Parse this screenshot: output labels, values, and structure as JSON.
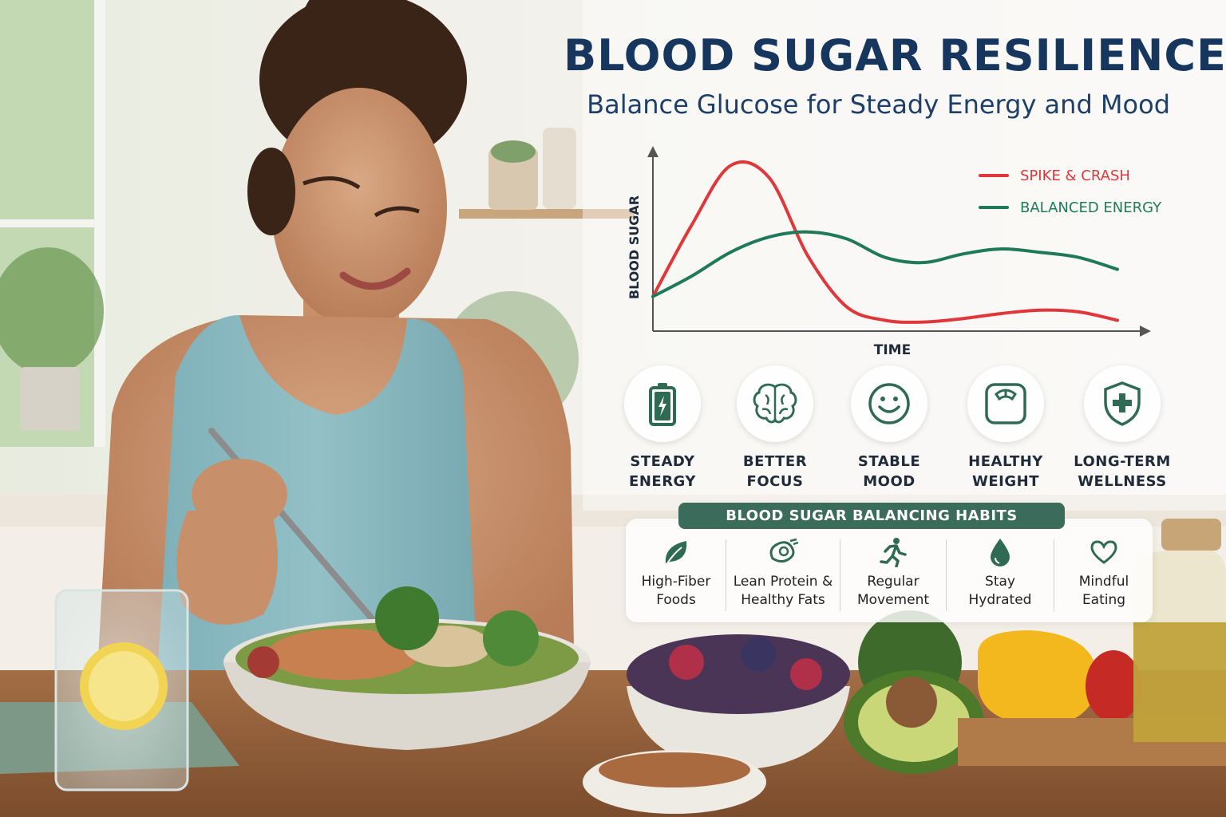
{
  "header": {
    "title": "BLOOD SUGAR RESILIENCE",
    "subtitle": "Balance Glucose for Steady Energy and Mood"
  },
  "chart_data": {
    "type": "line",
    "xlabel": "TIME",
    "ylabel": "BLOOD SUGAR",
    "x": [
      0,
      1,
      2,
      3,
      4,
      5,
      6,
      7,
      8,
      9,
      10,
      11,
      12
    ],
    "ylim": [
      0,
      100
    ],
    "series": [
      {
        "name": "SPIKE & CRASH",
        "color": "#e0383a",
        "values": [
          18,
          60,
          95,
          88,
          42,
          12,
          4,
          3,
          5,
          8,
          10,
          9,
          4
        ]
      },
      {
        "name": "BALANCED ENERGY",
        "color": "#1f7a5c",
        "values": [
          18,
          30,
          44,
          53,
          56,
          52,
          41,
          38,
          43,
          46,
          44,
          41,
          34
        ]
      }
    ],
    "grid": false,
    "legend_position": "top-right"
  },
  "benefits": [
    {
      "label_line1": "STEADY",
      "label_line2": "ENERGY",
      "icon": "battery-icon"
    },
    {
      "label_line1": "BETTER",
      "label_line2": "FOCUS",
      "icon": "brain-icon"
    },
    {
      "label_line1": "STABLE",
      "label_line2": "MOOD",
      "icon": "smiley-icon"
    },
    {
      "label_line1": "HEALTHY",
      "label_line2": "WEIGHT",
      "icon": "scale-icon"
    },
    {
      "label_line1": "LONG-TERM",
      "label_line2": "WELLNESS",
      "icon": "shield-plus-icon"
    }
  ],
  "habits": {
    "header": "BLOOD SUGAR BALANCING HABITS",
    "items": [
      {
        "label_line1": "High-Fiber",
        "label_line2": "Foods",
        "icon": "leaf-icon"
      },
      {
        "label_line1": "Lean Protein &",
        "label_line2": "Healthy Fats",
        "icon": "protein-icon"
      },
      {
        "label_line1": "Regular",
        "label_line2": "Movement",
        "icon": "running-icon"
      },
      {
        "label_line1": "Stay",
        "label_line2": "Hydrated",
        "icon": "water-drop-icon"
      },
      {
        "label_line1": "Mindful",
        "label_line2": "Eating",
        "icon": "heart-icon"
      }
    ]
  },
  "colors": {
    "title": "#16365e",
    "accent_green": "#3b6b5b",
    "icon_green": "#2f6a55",
    "spike_red": "#e0383a",
    "balanced_green": "#1f7a5c"
  }
}
